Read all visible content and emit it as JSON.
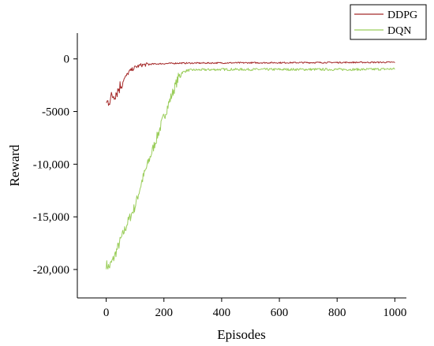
{
  "chart_data": {
    "type": "line",
    "xlabel": "Episodes",
    "ylabel": "Reward",
    "xlim": [
      -100,
      1040
    ],
    "ylim": [
      -22700,
      2450
    ],
    "x_ticks": [
      0,
      200,
      400,
      600,
      800,
      1000
    ],
    "x_tick_labels": [
      "0",
      "200",
      "400",
      "600",
      "800",
      "1000"
    ],
    "y_ticks": [
      0,
      -5000,
      -10000,
      -15000,
      -20000
    ],
    "y_tick_labels": [
      "0",
      "-5000",
      "-10,000",
      "-15,000",
      "-20,000"
    ],
    "grid": false,
    "legend_position": "top-right",
    "series": [
      {
        "name": "DDPG",
        "color": "#a52a2a",
        "x": [
          0,
          10,
          20,
          30,
          40,
          50,
          60,
          70,
          80,
          100,
          120,
          150,
          200,
          250,
          300,
          400,
          500,
          600,
          700,
          800,
          900,
          1000
        ],
        "y": [
          -4300,
          -3900,
          -3600,
          -3300,
          -3000,
          -2500,
          -2000,
          -1600,
          -1200,
          -800,
          -600,
          -500,
          -450,
          -400,
          -400,
          -380,
          -370,
          -360,
          -350,
          -340,
          -330,
          -320
        ]
      },
      {
        "name": "DQN",
        "color": "#9acd5a",
        "x": [
          0,
          10,
          25,
          50,
          75,
          100,
          125,
          150,
          175,
          200,
          225,
          250,
          262,
          280,
          300,
          400,
          500,
          600,
          700,
          800,
          900,
          1000
        ],
        "y": [
          -19500,
          -19800,
          -19000,
          -17200,
          -15500,
          -14000,
          -11500,
          -9500,
          -7500,
          -5500,
          -3600,
          -1800,
          -1300,
          -1100,
          -1050,
          -1000,
          -1000,
          -1000,
          -1000,
          -1000,
          -1000,
          -950
        ]
      }
    ]
  }
}
